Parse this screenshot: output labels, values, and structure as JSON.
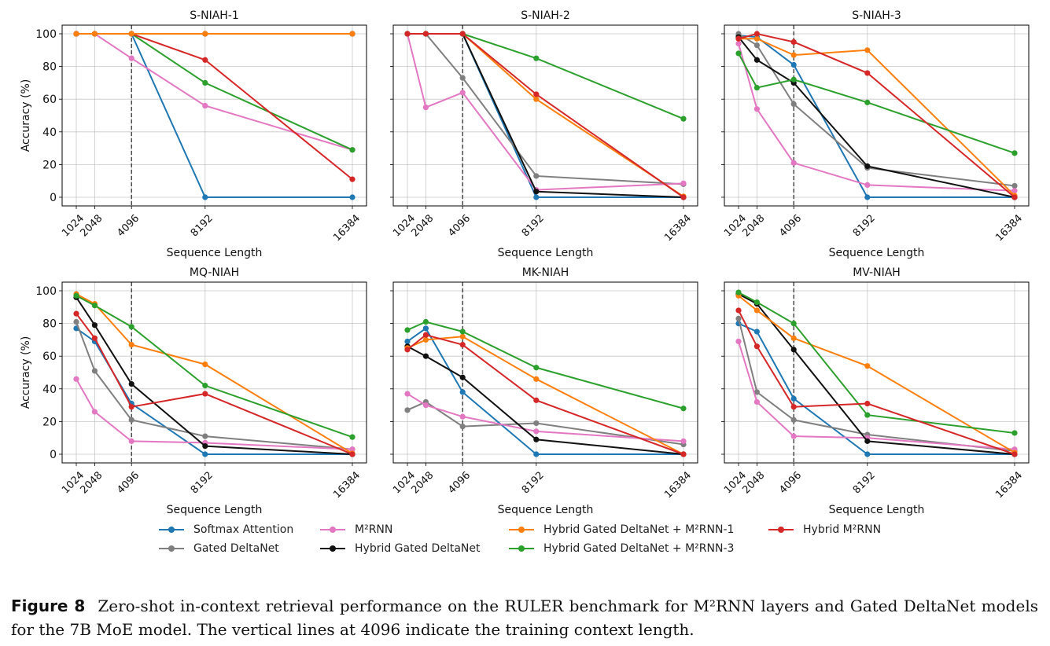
{
  "figure": {
    "caption_label": "Figure 8",
    "caption_text": "Zero-shot in-context retrieval performance on the RULER benchmark for M²RNN layers and Gated DeltaNet models for the 7B MoE model. The vertical lines at 4096 indicate the training context length."
  },
  "legend": [
    {
      "name": "Softmax Attention",
      "color": "#1f77b4"
    },
    {
      "name": "Gated DeltaNet",
      "color": "#7f7f7f"
    },
    {
      "name": "M²RNN",
      "color": "#e377c2"
    },
    {
      "name": "Hybrid Gated DeltaNet",
      "color": "#111111"
    },
    {
      "name": "Hybrid Gated DeltaNet + M²RNN-1",
      "color": "#ff7f0e"
    },
    {
      "name": "Hybrid Gated DeltaNet + M²RNN-3",
      "color": "#2ca02c"
    },
    {
      "name": "Hybrid M²RNN",
      "color": "#d62728"
    }
  ],
  "chart_data": [
    {
      "type": "line",
      "title": "S-NIAH-1",
      "xlabel": "Sequence Length",
      "ylabel": "Accuracy (%)",
      "x": [
        1024,
        2048,
        4096,
        8192,
        16384
      ],
      "ylim": [
        -7.5,
        105
      ],
      "yticks": [
        0,
        20,
        40,
        60,
        80,
        100
      ],
      "vline": 4096,
      "grid": true,
      "series": [
        {
          "name": "Gated DeltaNet",
          "values": [
            100,
            100,
            100,
            100,
            100
          ]
        },
        {
          "name": "Hybrid Gated DeltaNet",
          "values": [
            100,
            100,
            100,
            100,
            100
          ]
        },
        {
          "name": "Softmax Attention",
          "values": [
            100,
            100,
            100,
            0,
            0
          ]
        },
        {
          "name": "M²RNN",
          "values": [
            100,
            100,
            85,
            56,
            29
          ]
        },
        {
          "name": "Hybrid Gated DeltaNet + M²RNN-3",
          "values": [
            100,
            100,
            100,
            70,
            29
          ]
        },
        {
          "name": "Hybrid M²RNN",
          "values": [
            100,
            100,
            100,
            84,
            11
          ]
        },
        {
          "name": "Hybrid Gated DeltaNet + M²RNN-1",
          "values": [
            100,
            100,
            100,
            100,
            100
          ]
        }
      ]
    },
    {
      "type": "line",
      "title": "S-NIAH-2",
      "xlabel": "Sequence Length",
      "ylabel": "",
      "x": [
        1024,
        2048,
        4096,
        8192,
        16384
      ],
      "ylim": [
        -7.5,
        105
      ],
      "yticks": [
        0,
        20,
        40,
        60,
        80,
        100
      ],
      "vline": 4096,
      "grid": true,
      "series": [
        {
          "name": "Softmax Attention",
          "values": [
            100,
            100,
            100,
            0,
            0
          ]
        },
        {
          "name": "Gated DeltaNet",
          "values": [
            100,
            100,
            73,
            13,
            8
          ]
        },
        {
          "name": "M²RNN",
          "values": [
            100,
            55,
            64,
            4.5,
            8.5
          ]
        },
        {
          "name": "Hybrid Gated DeltaNet",
          "values": [
            100,
            100,
            100,
            3.5,
            0
          ]
        },
        {
          "name": "Hybrid Gated DeltaNet + M²RNN-1",
          "values": [
            100,
            100,
            100,
            60,
            0.5
          ]
        },
        {
          "name": "Hybrid Gated DeltaNet + M²RNN-3",
          "values": [
            100,
            100,
            100,
            85,
            48
          ]
        },
        {
          "name": "Hybrid M²RNN",
          "values": [
            100,
            100,
            100,
            63,
            0
          ]
        }
      ]
    },
    {
      "type": "line",
      "title": "S-NIAH-3",
      "xlabel": "Sequence Length",
      "ylabel": "",
      "x": [
        1024,
        2048,
        4096,
        8192,
        16384
      ],
      "ylim": [
        -7.5,
        105
      ],
      "yticks": [
        0,
        20,
        40,
        60,
        80,
        100
      ],
      "vline": 4096,
      "grid": true,
      "series": [
        {
          "name": "Softmax Attention",
          "values": [
            99,
            98,
            81,
            0,
            0
          ]
        },
        {
          "name": "Gated DeltaNet",
          "values": [
            100,
            93,
            57,
            18,
            7
          ]
        },
        {
          "name": "M²RNN",
          "values": [
            94,
            54,
            21,
            7.5,
            4
          ]
        },
        {
          "name": "Hybrid Gated DeltaNet",
          "values": [
            98,
            84,
            70,
            19,
            0
          ]
        },
        {
          "name": "Hybrid Gated DeltaNet + M²RNN-1",
          "values": [
            97,
            97,
            87,
            90,
            1
          ]
        },
        {
          "name": "Hybrid Gated DeltaNet + M²RNN-3",
          "values": [
            88,
            67,
            72,
            58,
            27
          ]
        },
        {
          "name": "Hybrid M²RNN",
          "values": [
            97,
            100,
            95,
            76,
            0
          ]
        }
      ]
    },
    {
      "type": "line",
      "title": "MQ-NIAH",
      "xlabel": "Sequence Length",
      "ylabel": "Accuracy (%)",
      "x": [
        1024,
        2048,
        4096,
        8192,
        16384
      ],
      "ylim": [
        -5,
        105
      ],
      "yticks": [
        0,
        20,
        40,
        60,
        80,
        100
      ],
      "vline": 4096,
      "grid": true,
      "series": [
        {
          "name": "Softmax Attention",
          "values": [
            77,
            69,
            31,
            0,
            0
          ]
        },
        {
          "name": "Gated DeltaNet",
          "values": [
            81,
            51,
            21,
            11,
            3
          ]
        },
        {
          "name": "M²RNN",
          "values": [
            46,
            26,
            8,
            7,
            3
          ]
        },
        {
          "name": "Hybrid Gated DeltaNet",
          "values": [
            96,
            79,
            43,
            5,
            0
          ]
        },
        {
          "name": "Hybrid Gated DeltaNet + M²RNN-1",
          "values": [
            98,
            92,
            67,
            55,
            0.5
          ]
        },
        {
          "name": "Hybrid Gated DeltaNet + M²RNN-3",
          "values": [
            97,
            91,
            78,
            42,
            10.5
          ]
        },
        {
          "name": "Hybrid M²RNN",
          "values": [
            86,
            71,
            29,
            37,
            0
          ]
        }
      ]
    },
    {
      "type": "line",
      "title": "MK-NIAH",
      "xlabel": "Sequence Length",
      "ylabel": "",
      "x": [
        1024,
        2048,
        4096,
        8192,
        16384
      ],
      "ylim": [
        -5,
        105
      ],
      "yticks": [
        0,
        20,
        40,
        60,
        80,
        100
      ],
      "vline": 4096,
      "grid": true,
      "series": [
        {
          "name": "Softmax Attention",
          "values": [
            69,
            77,
            38,
            0,
            0
          ]
        },
        {
          "name": "Gated DeltaNet",
          "values": [
            27,
            32,
            17,
            19,
            6
          ]
        },
        {
          "name": "M²RNN",
          "values": [
            37,
            30,
            23,
            14,
            8
          ]
        },
        {
          "name": "Hybrid Gated DeltaNet",
          "values": [
            66,
            60,
            47,
            9,
            0
          ]
        },
        {
          "name": "Hybrid Gated DeltaNet + M²RNN-1",
          "values": [
            65,
            70,
            72,
            46,
            0
          ]
        },
        {
          "name": "Hybrid Gated DeltaNet + M²RNN-3",
          "values": [
            76,
            81,
            75,
            53,
            28
          ]
        },
        {
          "name": "Hybrid M²RNN",
          "values": [
            64,
            73,
            67,
            33,
            0
          ]
        }
      ]
    },
    {
      "type": "line",
      "title": "MV-NIAH",
      "xlabel": "Sequence Length",
      "ylabel": "",
      "x": [
        1024,
        2048,
        4096,
        8192,
        16384
      ],
      "ylim": [
        -5,
        105
      ],
      "yticks": [
        0,
        20,
        40,
        60,
        80,
        100
      ],
      "vline": 4096,
      "grid": true,
      "series": [
        {
          "name": "Softmax Attention",
          "values": [
            80,
            75,
            34,
            0,
            0
          ]
        },
        {
          "name": "Gated DeltaNet",
          "values": [
            83,
            38,
            21,
            12,
            2
          ]
        },
        {
          "name": "M²RNN",
          "values": [
            69,
            32,
            11,
            10,
            3
          ]
        },
        {
          "name": "Hybrid Gated DeltaNet",
          "values": [
            98,
            92,
            64,
            8,
            0
          ]
        },
        {
          "name": "Hybrid Gated DeltaNet + M²RNN-1",
          "values": [
            97,
            88,
            71,
            54,
            1
          ]
        },
        {
          "name": "Hybrid Gated DeltaNet + M²RNN-3",
          "values": [
            99,
            93,
            80,
            24,
            13
          ]
        },
        {
          "name": "Hybrid M²RNN",
          "values": [
            88,
            66,
            29,
            31,
            0
          ]
        }
      ]
    }
  ]
}
